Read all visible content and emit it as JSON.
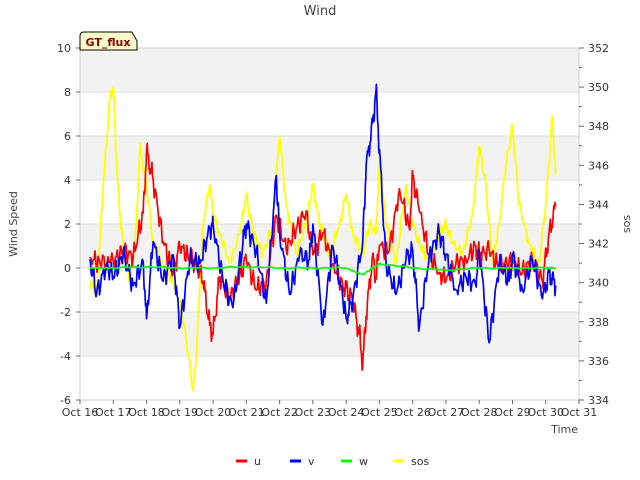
{
  "chart_data": {
    "type": "line",
    "title": "Wind",
    "xlabel": "Time",
    "ylabel": "Wind Speed",
    "y2label": "sos",
    "badge": "GT_flux",
    "xlim": [
      16,
      31
    ],
    "ylim": [
      -6,
      10
    ],
    "y2lim": [
      334,
      352
    ],
    "x_tick_labels": [
      "Oct 16",
      "Oct 17",
      "Oct 18",
      "Oct 19",
      "Oct 20",
      "Oct 21",
      "Oct 22",
      "Oct 23",
      "Oct 24",
      "Oct 25",
      "Oct 26",
      "Oct 27",
      "Oct 28",
      "Oct 29",
      "Oct 30",
      "Oct 31"
    ],
    "y_ticks": [
      -6,
      -4,
      -2,
      0,
      2,
      4,
      6,
      8,
      10
    ],
    "y2_ticks": [
      334,
      336,
      338,
      340,
      342,
      344,
      346,
      348,
      350,
      352
    ],
    "legend": {
      "position": "bottom-center",
      "entries": [
        "u",
        "v",
        "w",
        "sos"
      ]
    },
    "colors": {
      "u": "#ff0000",
      "v": "#0000ff",
      "w": "#00ff00",
      "sos": "#ffff00"
    },
    "series": [
      {
        "name": "u",
        "axis": "left",
        "x": [
          16.3,
          16.6,
          17.0,
          17.3,
          17.6,
          17.9,
          18.0,
          18.2,
          18.5,
          18.8,
          19.0,
          19.3,
          19.5,
          19.7,
          19.9,
          20.0,
          20.2,
          20.5,
          20.8,
          21.0,
          21.3,
          21.6,
          21.9,
          22.2,
          22.5,
          22.8,
          23.0,
          23.3,
          23.6,
          23.9,
          24.0,
          24.2,
          24.4,
          24.5,
          24.6,
          24.8,
          24.9,
          25.0,
          25.3,
          25.6,
          25.9,
          26.0,
          26.2,
          26.5,
          26.8,
          27.0,
          27.3,
          27.6,
          27.9,
          28.0,
          28.3,
          28.6,
          28.9,
          29.0,
          29.3,
          29.6,
          29.9,
          30.1,
          30.3
        ],
        "y": [
          0.5,
          0.2,
          0.3,
          0.8,
          0.5,
          2.5,
          5.3,
          4.0,
          1.2,
          -0.2,
          1.0,
          0.4,
          0.2,
          -0.6,
          -2.6,
          -3.0,
          -0.4,
          -1.4,
          -0.3,
          0.4,
          -1.0,
          -0.6,
          2.4,
          0.8,
          1.8,
          2.6,
          0.6,
          1.6,
          0.2,
          -0.8,
          -0.9,
          -1.5,
          -3.0,
          -4.4,
          -2.2,
          0.6,
          -0.5,
          1.0,
          0.8,
          3.6,
          1.8,
          4.2,
          2.6,
          0.6,
          -0.2,
          -0.6,
          0.2,
          0.4,
          1.0,
          0.6,
          0.8,
          0.0,
          0.3,
          0.2,
          -0.2,
          0.4,
          -0.6,
          1.6,
          2.8
        ]
      },
      {
        "name": "v",
        "axis": "left",
        "x": [
          16.3,
          16.5,
          16.8,
          17.0,
          17.3,
          17.6,
          17.9,
          18.0,
          18.2,
          18.5,
          18.8,
          19.0,
          19.3,
          19.6,
          19.9,
          20.0,
          20.3,
          20.6,
          20.9,
          21.0,
          21.3,
          21.6,
          21.9,
          22.0,
          22.3,
          22.6,
          22.9,
          23.0,
          23.3,
          23.6,
          23.9,
          24.0,
          24.2,
          24.5,
          24.6,
          24.8,
          24.9,
          25.0,
          25.2,
          25.5,
          25.8,
          26.0,
          26.2,
          26.5,
          26.8,
          27.0,
          27.3,
          27.6,
          27.9,
          28.0,
          28.3,
          28.6,
          28.9,
          29.0,
          29.3,
          29.6,
          29.9,
          30.1,
          30.3
        ],
        "y": [
          0.4,
          -1.2,
          0.2,
          -0.4,
          0.6,
          -0.8,
          0.3,
          -2.3,
          1.2,
          -0.6,
          0.6,
          -2.7,
          0.4,
          0.2,
          1.8,
          2.0,
          -0.6,
          -1.8,
          1.2,
          2.0,
          0.8,
          -1.6,
          4.2,
          1.6,
          -1.2,
          0.6,
          0.4,
          2.0,
          -2.6,
          1.0,
          -1.4,
          -2.3,
          -1.4,
          1.2,
          4.6,
          6.6,
          8.1,
          5.4,
          0.2,
          -1.2,
          0.4,
          0.8,
          -2.7,
          0.6,
          1.6,
          0.6,
          -1.0,
          -0.4,
          -0.8,
          0.8,
          -3.4,
          0.2,
          -0.6,
          0.6,
          -1.0,
          0.4,
          -1.4,
          -0.2,
          -0.8
        ]
      },
      {
        "name": "w",
        "axis": "left",
        "x": [
          16.3,
          17.0,
          18.0,
          19.0,
          20.0,
          21.0,
          22.0,
          23.0,
          24.0,
          24.5,
          24.8,
          25.0,
          26.0,
          27.0,
          28.0,
          29.0,
          30.0,
          30.3
        ],
        "y": [
          0.0,
          0.0,
          0.05,
          0.0,
          0.0,
          0.05,
          0.0,
          0.0,
          0.0,
          -0.3,
          0.0,
          0.2,
          0.0,
          -0.1,
          0.0,
          0.0,
          0.0,
          0.0
        ]
      },
      {
        "name": "sos",
        "axis": "right",
        "x": [
          16.3,
          16.5,
          16.7,
          16.9,
          17.0,
          17.1,
          17.2,
          17.3,
          17.5,
          17.7,
          17.8,
          18.0,
          18.2,
          18.5,
          18.8,
          19.0,
          19.2,
          19.4,
          19.5,
          19.7,
          19.9,
          20.0,
          20.2,
          20.5,
          20.8,
          21.0,
          21.2,
          21.5,
          21.8,
          22.0,
          22.2,
          22.5,
          22.8,
          23.0,
          23.2,
          23.5,
          23.8,
          24.0,
          24.2,
          24.5,
          24.7,
          24.9,
          25.0,
          25.2,
          25.5,
          25.8,
          26.0,
          26.2,
          26.5,
          26.8,
          27.0,
          27.2,
          27.5,
          27.8,
          28.0,
          28.2,
          28.4,
          28.6,
          28.8,
          29.0,
          29.2,
          29.5,
          29.8,
          30.0,
          30.2,
          30.3
        ],
        "y": [
          340.0,
          339.5,
          345.0,
          349.5,
          350.0,
          346.0,
          343.5,
          342.0,
          340.0,
          343.0,
          347.0,
          345.0,
          342.0,
          341.0,
          340.0,
          339.0,
          337.0,
          334.5,
          336.5,
          343.0,
          345.0,
          343.5,
          342.5,
          341.0,
          342.5,
          344.5,
          342.5,
          341.5,
          343.0,
          347.5,
          344.0,
          341.5,
          343.0,
          345.0,
          343.0,
          341.5,
          343.0,
          344.5,
          342.5,
          341.5,
          343.0,
          342.5,
          346.0,
          343.0,
          341.0,
          345.0,
          343.0,
          342.0,
          341.0,
          342.5,
          343.0,
          342.0,
          341.5,
          343.5,
          347.0,
          345.0,
          341.0,
          343.0,
          346.0,
          348.0,
          344.0,
          342.0,
          341.0,
          344.0,
          348.5,
          345.5
        ]
      }
    ]
  }
}
